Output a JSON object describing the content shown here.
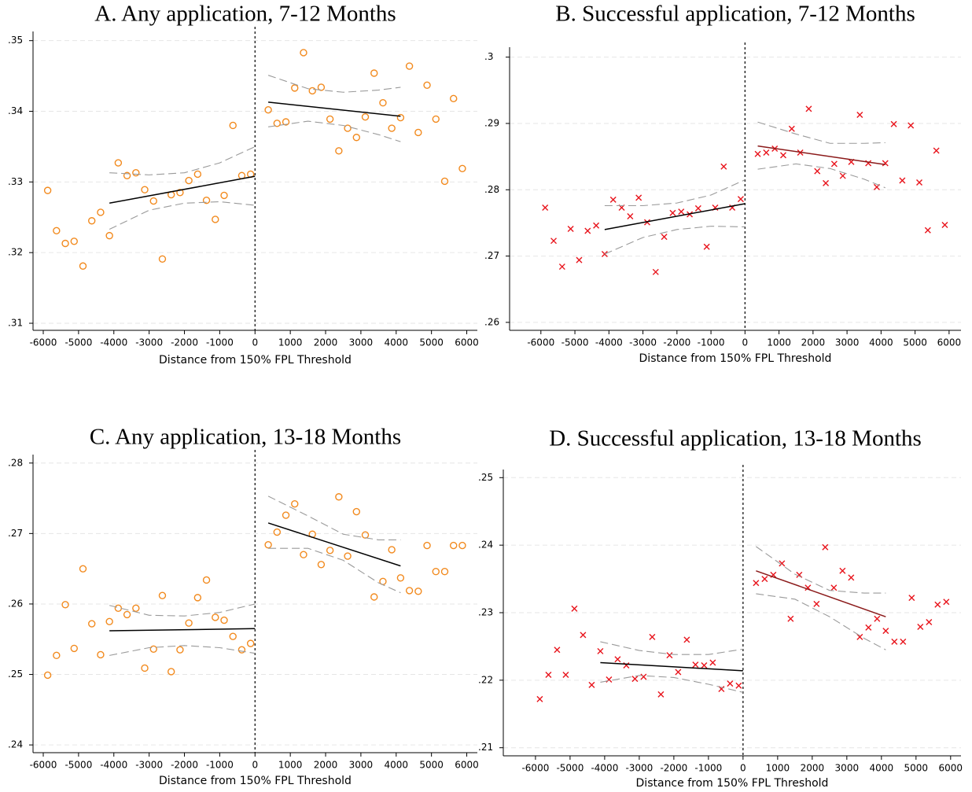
{
  "chart_data": [
    {
      "type": "scatter",
      "title": "A. Any application, 7-12 Months",
      "x_label": "Distance from 150% FPL Threshold",
      "xlim": [
        -6290,
        6300
      ],
      "ylim": [
        0.309,
        0.3513
      ],
      "grid": true,
      "vline": 0,
      "xticks": [
        -6000,
        -5000,
        -4000,
        -3000,
        -2000,
        -1000,
        0,
        1000,
        2000,
        3000,
        4000,
        5000,
        6000
      ],
      "yticks": [
        {
          "value": 0.31,
          "label": ".31"
        },
        {
          "value": 0.32,
          "label": ".32"
        },
        {
          "value": 0.33,
          "label": ".33"
        },
        {
          "value": 0.34,
          "label": ".34"
        },
        {
          "value": 0.35,
          "label": ".35"
        }
      ],
      "series": [
        {
          "marker": "o",
          "color": "#f28a1e",
          "x": [
            -5875,
            -5625,
            -5375,
            -5125,
            -4875,
            -4625,
            -4375,
            -4125,
            -3875,
            -3625,
            -3375,
            -3125,
            -2875,
            -2625,
            -2375,
            -2125,
            -1875,
            -1625,
            -1375,
            -1125,
            -875,
            -625,
            -375,
            -125,
            375,
            625,
            875,
            1125,
            1375,
            1625,
            1875,
            2125,
            2375,
            2625,
            2875,
            3125,
            3375,
            3625,
            3875,
            4125,
            4375,
            4625,
            4875,
            5125,
            5375,
            5625,
            5875
          ],
          "values": [
            0.3288,
            0.3231,
            0.3213,
            0.3216,
            0.3181,
            0.3245,
            0.3257,
            0.3224,
            0.3327,
            0.3309,
            0.3313,
            0.3289,
            0.3273,
            0.3191,
            0.3282,
            0.3285,
            0.3302,
            0.3311,
            0.3274,
            0.3247,
            0.3281,
            0.338,
            0.3309,
            0.3311,
            0.3402,
            0.3383,
            0.3385,
            0.3433,
            0.3483,
            0.3429,
            0.3434,
            0.3389,
            0.3344,
            0.3376,
            0.3363,
            0.3392,
            0.3454,
            0.3412,
            0.3376,
            0.3391,
            0.3464,
            0.337,
            0.3437,
            0.3389,
            0.3301,
            0.3418,
            0.3319
          ]
        },
        {
          "line_style": "solid",
          "color": "#000000",
          "x": [
            -4125,
            0
          ],
          "values": [
            0.327,
            0.3308
          ]
        },
        {
          "line_style": "solid",
          "color": "#000000",
          "x": [
            375,
            4125
          ],
          "values": [
            0.3413,
            0.3393
          ]
        },
        {
          "line_style": "dashed",
          "color": "#9a9a9a",
          "x": [
            -4125,
            -3000,
            -2000,
            -1000,
            0
          ],
          "values": [
            0.3313,
            0.331,
            0.3313,
            0.3327,
            0.335
          ]
        },
        {
          "line_style": "dashed",
          "color": "#9a9a9a",
          "x": [
            -4125,
            -3000,
            -2000,
            -1000,
            0
          ],
          "values": [
            0.3233,
            0.326,
            0.327,
            0.3272,
            0.3267
          ]
        },
        {
          "line_style": "dashed",
          "color": "#9a9a9a",
          "x": [
            375,
            1500,
            2500,
            3500,
            4125
          ],
          "values": [
            0.3451,
            0.3432,
            0.3427,
            0.343,
            0.3434
          ]
        },
        {
          "line_style": "dashed",
          "color": "#9a9a9a",
          "x": [
            375,
            1500,
            2500,
            3500,
            4125
          ],
          "values": [
            0.3378,
            0.3386,
            0.338,
            0.3367,
            0.3357
          ]
        }
      ]
    },
    {
      "type": "scatter",
      "title": "B. Successful application, 7-12 Months",
      "x_label": "Distance from 150% FPL Threshold",
      "xlim": [
        -6920,
        6350
      ],
      "ylim": [
        0.2588,
        0.3015
      ],
      "grid": true,
      "vline": 0,
      "xticks": [
        -6000,
        -5000,
        -4000,
        -3000,
        -2000,
        -1000,
        0,
        1000,
        2000,
        3000,
        4000,
        5000,
        6000
      ],
      "yticks": [
        {
          "value": 0.26,
          "label": ".26"
        },
        {
          "value": 0.27,
          "label": ".27"
        },
        {
          "value": 0.28,
          "label": ".28"
        },
        {
          "value": 0.29,
          "label": ".29"
        },
        {
          "value": 0.3,
          "label": ".3"
        }
      ],
      "series": [
        {
          "marker": "x",
          "color": "#e8141c",
          "x": [
            -5875,
            -5625,
            -5375,
            -5125,
            -4875,
            -4625,
            -4375,
            -4125,
            -3875,
            -3625,
            -3375,
            -3125,
            -2875,
            -2625,
            -2375,
            -2125,
            -1875,
            -1625,
            -1375,
            -1125,
            -875,
            -625,
            -375,
            -125,
            375,
            625,
            875,
            1125,
            1375,
            1625,
            1875,
            2125,
            2375,
            2625,
            2875,
            3125,
            3375,
            3625,
            3875,
            4125,
            4375,
            4625,
            4875,
            5125,
            5375,
            5625,
            5875
          ],
          "values": [
            0.2773,
            0.2723,
            0.2684,
            0.2741,
            0.2694,
            0.2738,
            0.2746,
            0.2703,
            0.2785,
            0.2773,
            0.276,
            0.2788,
            0.2751,
            0.2676,
            0.2729,
            0.2765,
            0.2767,
            0.2763,
            0.2772,
            0.2714,
            0.2773,
            0.2835,
            0.2773,
            0.2786,
            0.2854,
            0.2856,
            0.2862,
            0.2852,
            0.2892,
            0.2856,
            0.2922,
            0.2828,
            0.281,
            0.2839,
            0.2821,
            0.2842,
            0.2913,
            0.284,
            0.2804,
            0.284,
            0.2899,
            0.2814,
            0.2897,
            0.2811,
            0.2739,
            0.2859,
            0.2747
          ]
        },
        {
          "line_style": "solid",
          "color": "#000000",
          "x": [
            -4125,
            0
          ],
          "values": [
            0.274,
            0.2779
          ]
        },
        {
          "line_style": "solid",
          "color": "#8b1a1a",
          "x": [
            375,
            4125
          ],
          "values": [
            0.2866,
            0.2838
          ]
        },
        {
          "line_style": "dashed",
          "color": "#9a9a9a",
          "x": [
            -4125,
            -3000,
            -2000,
            -1000,
            0
          ],
          "values": [
            0.2776,
            0.2776,
            0.278,
            0.2792,
            0.2815
          ]
        },
        {
          "line_style": "dashed",
          "color": "#9a9a9a",
          "x": [
            -4125,
            -3000,
            -2000,
            -1000,
            0
          ],
          "values": [
            0.2703,
            0.2728,
            0.274,
            0.2745,
            0.2744
          ]
        },
        {
          "line_style": "dashed",
          "color": "#9a9a9a",
          "x": [
            375,
            1500,
            2500,
            3500,
            4125
          ],
          "values": [
            0.2902,
            0.2884,
            0.287,
            0.287,
            0.2871
          ]
        },
        {
          "line_style": "dashed",
          "color": "#9a9a9a",
          "x": [
            375,
            1500,
            2500,
            3500,
            4125
          ],
          "values": [
            0.2831,
            0.2839,
            0.2832,
            0.2816,
            0.2803
          ]
        }
      ]
    },
    {
      "type": "scatter",
      "title": "C. Any application, 13-18 Months",
      "x_label": "Distance from 150% FPL Threshold",
      "xlim": [
        -6290,
        6300
      ],
      "ylim": [
        0.2389,
        0.2812
      ],
      "grid": true,
      "vline": 0,
      "xticks": [
        -6000,
        -5000,
        -4000,
        -3000,
        -2000,
        -1000,
        0,
        1000,
        2000,
        3000,
        4000,
        5000,
        6000
      ],
      "yticks": [
        {
          "value": 0.24,
          "label": ".24"
        },
        {
          "value": 0.25,
          "label": ".25"
        },
        {
          "value": 0.26,
          "label": ".26"
        },
        {
          "value": 0.27,
          "label": ".27"
        },
        {
          "value": 0.28,
          "label": ".28"
        }
      ],
      "series": [
        {
          "marker": "o",
          "color": "#f28a1e",
          "x": [
            -5875,
            -5625,
            -5375,
            -5125,
            -4875,
            -4625,
            -4375,
            -4125,
            -3875,
            -3625,
            -3375,
            -3125,
            -2875,
            -2625,
            -2375,
            -2125,
            -1875,
            -1625,
            -1375,
            -1125,
            -875,
            -625,
            -375,
            -125,
            375,
            625,
            875,
            1125,
            1375,
            1625,
            1875,
            2125,
            2375,
            2625,
            2875,
            3125,
            3375,
            3625,
            3875,
            4125,
            4375,
            4625,
            4875,
            5125,
            5375,
            5625,
            5875
          ],
          "values": [
            0.2499,
            0.2527,
            0.2599,
            0.2537,
            0.265,
            0.2572,
            0.2528,
            0.2575,
            0.2594,
            0.2585,
            0.2594,
            0.2509,
            0.2536,
            0.2612,
            0.2504,
            0.2535,
            0.2573,
            0.2609,
            0.2634,
            0.2581,
            0.2577,
            0.2554,
            0.2535,
            0.2544,
            0.2684,
            0.2702,
            0.2726,
            0.2742,
            0.267,
            0.2699,
            0.2656,
            0.2676,
            0.2752,
            0.2668,
            0.2731,
            0.2698,
            0.261,
            0.2632,
            0.2677,
            0.2637,
            0.2619,
            0.2618,
            0.2683,
            0.2646,
            0.2646,
            0.2683,
            0.2683
          ]
        },
        {
          "line_style": "solid",
          "color": "#000000",
          "x": [
            -4125,
            0
          ],
          "values": [
            0.2562,
            0.2565
          ]
        },
        {
          "line_style": "solid",
          "color": "#000000",
          "x": [
            375,
            4125
          ],
          "values": [
            0.2715,
            0.2654
          ]
        },
        {
          "line_style": "dashed",
          "color": "#9a9a9a",
          "x": [
            -4125,
            -3000,
            -2000,
            -1000,
            0
          ],
          "values": [
            0.2598,
            0.2584,
            0.2583,
            0.2588,
            0.26
          ]
        },
        {
          "line_style": "dashed",
          "color": "#9a9a9a",
          "x": [
            -4125,
            -3000,
            -2000,
            -1000,
            0
          ],
          "values": [
            0.2527,
            0.2538,
            0.2541,
            0.2538,
            0.253
          ]
        },
        {
          "line_style": "dashed",
          "color": "#9a9a9a",
          "x": [
            375,
            1500,
            2500,
            3500,
            4125
          ],
          "values": [
            0.2753,
            0.2725,
            0.2699,
            0.2691,
            0.2691
          ]
        },
        {
          "line_style": "dashed",
          "color": "#9a9a9a",
          "x": [
            375,
            1500,
            2500,
            3500,
            4125
          ],
          "values": [
            0.2679,
            0.2679,
            0.2662,
            0.263,
            0.2616
          ]
        }
      ]
    },
    {
      "type": "scatter",
      "title": "D. Successful application, 13-18 Months",
      "x_label": "Distance from 150% FPL Threshold",
      "xlim": [
        -6930,
        6300
      ],
      "ylim": [
        0.2088,
        0.2512
      ],
      "grid": true,
      "vline": 0,
      "xticks": [
        -6000,
        -5000,
        -4000,
        -3000,
        -2000,
        -1000,
        0,
        1000,
        2000,
        3000,
        4000,
        5000,
        6000
      ],
      "yticks": [
        {
          "value": 0.21,
          "label": ".21"
        },
        {
          "value": 0.22,
          "label": ".22"
        },
        {
          "value": 0.23,
          "label": ".23"
        },
        {
          "value": 0.24,
          "label": ".24"
        },
        {
          "value": 0.25,
          "label": ".25"
        }
      ],
      "series": [
        {
          "marker": "x",
          "color": "#e8141c",
          "x": [
            -5875,
            -5625,
            -5375,
            -5125,
            -4875,
            -4625,
            -4375,
            -4125,
            -3875,
            -3625,
            -3375,
            -3125,
            -2875,
            -2625,
            -2375,
            -2125,
            -1875,
            -1625,
            -1375,
            -1125,
            -875,
            -625,
            -375,
            -125,
            375,
            625,
            875,
            1125,
            1375,
            1625,
            1875,
            2125,
            2375,
            2625,
            2875,
            3125,
            3375,
            3625,
            3875,
            4125,
            4375,
            4625,
            4875,
            5125,
            5375,
            5625,
            5875
          ],
          "values": [
            0.2172,
            0.2208,
            0.2245,
            0.2208,
            0.2306,
            0.2267,
            0.2193,
            0.2243,
            0.2201,
            0.2231,
            0.2222,
            0.2202,
            0.2205,
            0.2264,
            0.2179,
            0.2237,
            0.2212,
            0.226,
            0.2223,
            0.2222,
            0.2226,
            0.2187,
            0.2195,
            0.2192,
            0.2344,
            0.235,
            0.2356,
            0.2373,
            0.2291,
            0.2356,
            0.2337,
            0.2313,
            0.2397,
            0.2337,
            0.2362,
            0.2352,
            0.2264,
            0.2278,
            0.2291,
            0.2273,
            0.2257,
            0.2257,
            0.2322,
            0.2279,
            0.2286,
            0.2312,
            0.2316
          ]
        },
        {
          "line_style": "solid",
          "color": "#000000",
          "x": [
            -4125,
            0
          ],
          "values": [
            0.2226,
            0.2214
          ]
        },
        {
          "line_style": "solid",
          "color": "#8b1a1a",
          "x": [
            375,
            4125
          ],
          "values": [
            0.2362,
            0.2294
          ]
        },
        {
          "line_style": "dashed",
          "color": "#9a9a9a",
          "x": [
            -4125,
            -3000,
            -2000,
            -1000,
            0
          ],
          "values": [
            0.2257,
            0.2244,
            0.2238,
            0.2238,
            0.2246
          ]
        },
        {
          "line_style": "dashed",
          "color": "#9a9a9a",
          "x": [
            -4125,
            -3000,
            -2000,
            -1000,
            0
          ],
          "values": [
            0.2197,
            0.2207,
            0.2204,
            0.2194,
            0.2182
          ]
        },
        {
          "line_style": "dashed",
          "color": "#9a9a9a",
          "x": [
            375,
            1500,
            2500,
            3500,
            4125
          ],
          "values": [
            0.2398,
            0.2357,
            0.2333,
            0.2329,
            0.2329
          ]
        },
        {
          "line_style": "dashed",
          "color": "#9a9a9a",
          "x": [
            375,
            1500,
            2500,
            3500,
            4125
          ],
          "values": [
            0.2328,
            0.232,
            0.2294,
            0.2262,
            0.2245
          ]
        }
      ]
    }
  ]
}
